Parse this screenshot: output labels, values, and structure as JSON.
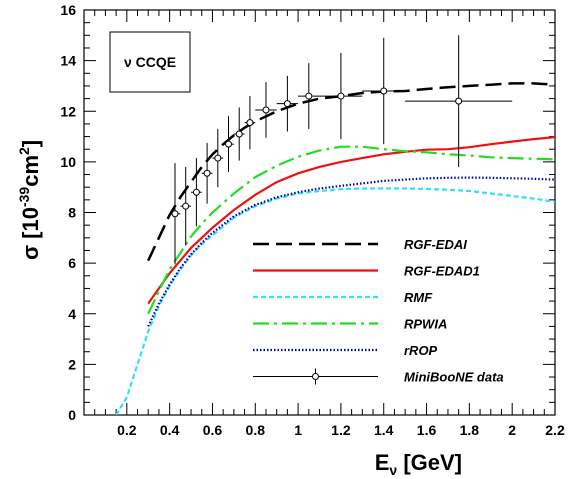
{
  "chart_data": {
    "type": "line",
    "xlabel_main": "E",
    "xlabel_sub": "ν",
    "xlabel_unit": " [GeV]",
    "ylabel_main": "σ [10",
    "ylabel_exp1": "-39",
    "ylabel_mid": "cm",
    "ylabel_exp2": "2",
    "ylabel_end": "]",
    "xlim": [
      0,
      2.2
    ],
    "ylim": [
      0,
      16
    ],
    "x_ticks": [
      {
        "v": 0.2,
        "label": "0.2"
      },
      {
        "v": 0.4,
        "label": "0.4"
      },
      {
        "v": 0.6,
        "label": "0.6"
      },
      {
        "v": 0.8,
        "label": "0.8"
      },
      {
        "v": 1.0,
        "label": "1"
      },
      {
        "v": 1.2,
        "label": "1.2"
      },
      {
        "v": 1.4,
        "label": "1.4"
      },
      {
        "v": 1.6,
        "label": "1.6"
      },
      {
        "v": 1.8,
        "label": "1.8"
      },
      {
        "v": 2.0,
        "label": "2"
      },
      {
        "v": 2.2,
        "label": "2.2"
      }
    ],
    "y_ticks": [
      {
        "v": 0,
        "label": "0"
      },
      {
        "v": 2,
        "label": "2"
      },
      {
        "v": 4,
        "label": "4"
      },
      {
        "v": 6,
        "label": "6"
      },
      {
        "v": 8,
        "label": "8"
      },
      {
        "v": 10,
        "label": "10"
      },
      {
        "v": 12,
        "label": "12"
      },
      {
        "v": 14,
        "label": "14"
      },
      {
        "v": 16,
        "label": "16"
      }
    ],
    "annotation": "ν CCQE",
    "series": [
      {
        "name": "RGF-EDAI",
        "color": "#000000",
        "dash": "16,7",
        "width": 2.5,
        "x": [
          0.3,
          0.35,
          0.4,
          0.45,
          0.5,
          0.55,
          0.6,
          0.65,
          0.7,
          0.75,
          0.8,
          0.9,
          1.0,
          1.1,
          1.2,
          1.3,
          1.4,
          1.5,
          1.6,
          1.7,
          1.8,
          1.9,
          2.0,
          2.1,
          2.2
        ],
        "y": [
          6.1,
          7.0,
          7.9,
          8.6,
          9.2,
          9.8,
          10.3,
          10.7,
          11.05,
          11.35,
          11.6,
          12.0,
          12.3,
          12.5,
          12.6,
          12.72,
          12.78,
          12.8,
          12.88,
          12.95,
          13.0,
          13.05,
          13.1,
          13.1,
          13.05
        ]
      },
      {
        "name": "RGF-EDAD1",
        "color": "#ee1111",
        "dash": "",
        "width": 2.2,
        "x": [
          0.3,
          0.35,
          0.4,
          0.45,
          0.5,
          0.55,
          0.6,
          0.7,
          0.8,
          0.9,
          1.0,
          1.1,
          1.2,
          1.3,
          1.4,
          1.5,
          1.6,
          1.7,
          1.8,
          1.9,
          2.0,
          2.1,
          2.2
        ],
        "y": [
          4.4,
          5.0,
          5.6,
          6.1,
          6.6,
          7.0,
          7.4,
          8.1,
          8.7,
          9.2,
          9.55,
          9.8,
          10.0,
          10.15,
          10.3,
          10.4,
          10.48,
          10.5,
          10.58,
          10.7,
          10.8,
          10.9,
          10.98
        ]
      },
      {
        "name": "RMF",
        "color": "#33ddff",
        "dash": "5,3",
        "width": 2.2,
        "x": [
          0.15,
          0.2,
          0.25,
          0.3,
          0.35,
          0.4,
          0.45,
          0.5,
          0.55,
          0.6,
          0.7,
          0.8,
          0.9,
          1.0,
          1.1,
          1.2,
          1.3,
          1.4,
          1.5,
          1.6,
          1.7,
          1.8,
          1.9,
          2.0,
          2.1,
          2.2
        ],
        "y": [
          0.0,
          0.7,
          2.0,
          3.3,
          4.3,
          5.1,
          5.75,
          6.3,
          6.75,
          7.1,
          7.8,
          8.25,
          8.55,
          8.75,
          8.85,
          8.92,
          8.95,
          8.95,
          8.95,
          8.93,
          8.9,
          8.85,
          8.75,
          8.65,
          8.55,
          8.42
        ]
      },
      {
        "name": "RPWIA",
        "color": "#22dd22",
        "dash": "16,5,3,5",
        "width": 2.2,
        "x": [
          0.3,
          0.35,
          0.4,
          0.45,
          0.5,
          0.55,
          0.6,
          0.7,
          0.8,
          0.9,
          1.0,
          1.1,
          1.2,
          1.3,
          1.4,
          1.5,
          1.6,
          1.7,
          1.8,
          1.9,
          2.0,
          2.1,
          2.2
        ],
        "y": [
          4.0,
          4.9,
          5.75,
          6.4,
          7.05,
          7.55,
          8.0,
          8.75,
          9.4,
          9.85,
          10.2,
          10.45,
          10.6,
          10.6,
          10.5,
          10.42,
          10.38,
          10.3,
          10.25,
          10.18,
          10.15,
          10.12,
          10.1
        ]
      },
      {
        "name": "rROP",
        "color": "#0000aa",
        "dash": "1.5,2",
        "width": 2.2,
        "x": [
          0.3,
          0.35,
          0.4,
          0.45,
          0.5,
          0.55,
          0.6,
          0.7,
          0.8,
          0.9,
          1.0,
          1.1,
          1.2,
          1.3,
          1.4,
          1.5,
          1.6,
          1.7,
          1.8,
          1.9,
          2.0,
          2.1,
          2.2
        ],
        "y": [
          3.5,
          4.4,
          5.15,
          5.8,
          6.35,
          6.8,
          7.2,
          7.85,
          8.3,
          8.6,
          8.8,
          8.95,
          9.05,
          9.15,
          9.25,
          9.3,
          9.35,
          9.37,
          9.38,
          9.37,
          9.35,
          9.33,
          9.3
        ]
      },
      {
        "name": "MiniBooNE data",
        "color": "#000000",
        "type": "errorbar",
        "points": [
          {
            "x": 0.425,
            "y": 7.95,
            "xerr": 0.025,
            "yerr": 2.0
          },
          {
            "x": 0.475,
            "y": 8.25,
            "xerr": 0.025,
            "yerr": 1.55
          },
          {
            "x": 0.525,
            "y": 8.8,
            "xerr": 0.025,
            "yerr": 1.35
          },
          {
            "x": 0.575,
            "y": 9.55,
            "xerr": 0.025,
            "yerr": 1.2
          },
          {
            "x": 0.625,
            "y": 10.15,
            "xerr": 0.025,
            "yerr": 1.15
          },
          {
            "x": 0.675,
            "y": 10.7,
            "xerr": 0.025,
            "yerr": 1.1
          },
          {
            "x": 0.725,
            "y": 11.1,
            "xerr": 0.025,
            "yerr": 1.05
          },
          {
            "x": 0.775,
            "y": 11.55,
            "xerr": 0.025,
            "yerr": 1.05
          },
          {
            "x": 0.85,
            "y": 12.05,
            "xerr": 0.05,
            "yerr": 1.1
          },
          {
            "x": 0.95,
            "y": 12.3,
            "xerr": 0.05,
            "yerr": 1.1
          },
          {
            "x": 1.05,
            "y": 12.6,
            "xerr": 0.05,
            "yerr": 1.3
          },
          {
            "x": 1.2,
            "y": 12.6,
            "xerr": 0.1,
            "yerr": 1.7
          },
          {
            "x": 1.4,
            "y": 12.8,
            "xerr": 0.1,
            "yerr": 2.1
          },
          {
            "x": 1.75,
            "y": 12.4,
            "xerr": 0.25,
            "yerr": 2.6
          }
        ]
      }
    ]
  }
}
